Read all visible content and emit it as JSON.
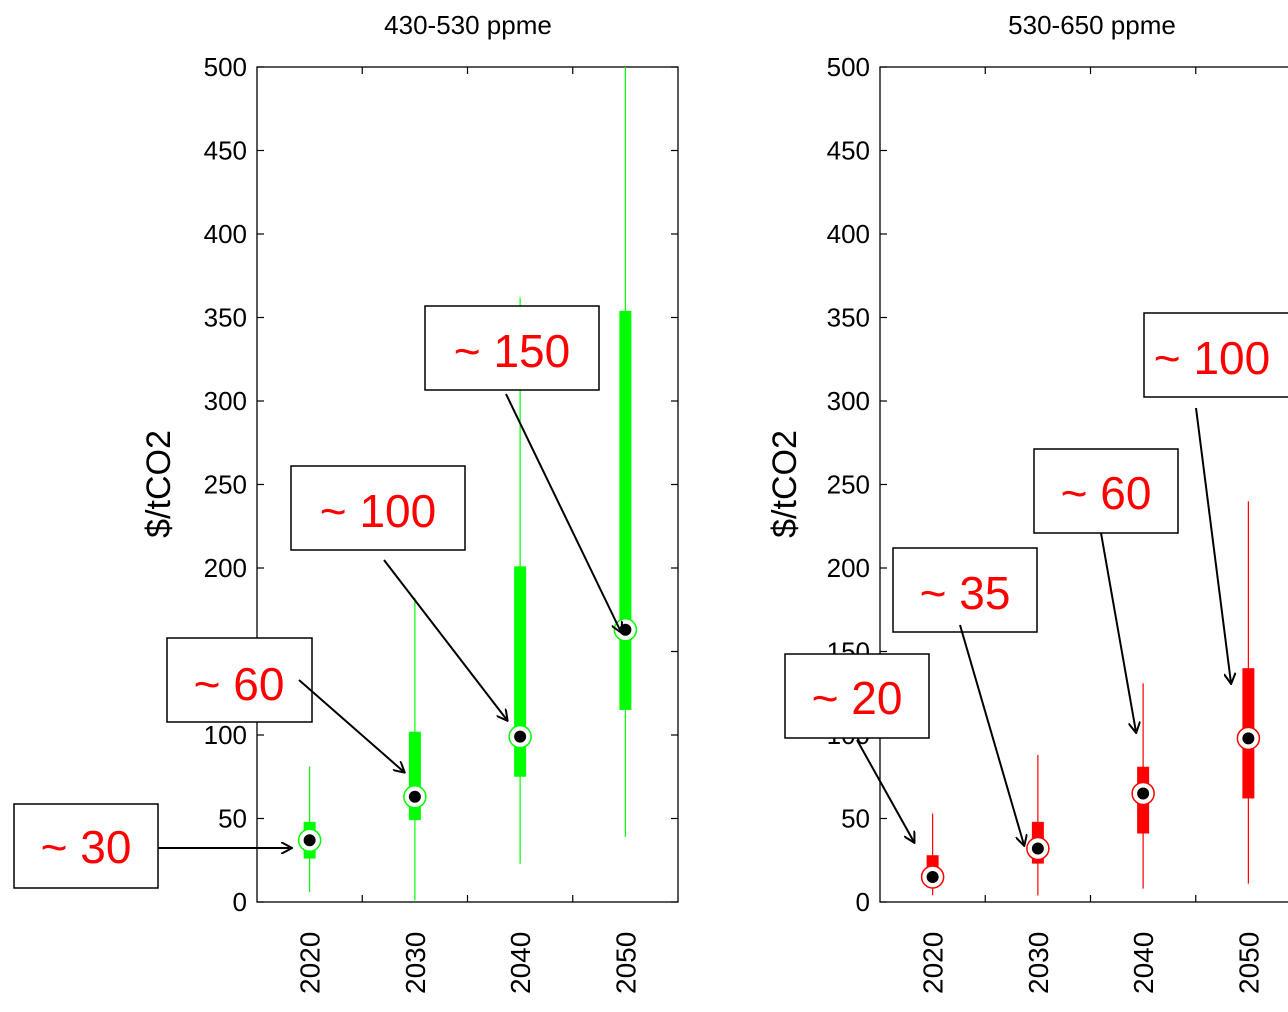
{
  "chart_data": [
    {
      "type": "box",
      "title": "430-530 ppme",
      "ylabel": "$/tCO2",
      "xlabel": "",
      "ylim": [
        0,
        500
      ],
      "yticks": [
        0,
        50,
        100,
        150,
        200,
        250,
        300,
        350,
        400,
        450,
        500
      ],
      "categories": [
        "2020",
        "2030",
        "2040",
        "2050"
      ],
      "color": "#00ff00",
      "boxes": [
        {
          "year": "2020",
          "whisker_low": 6,
          "q1": 26,
          "median": 37,
          "q3": 48,
          "whisker_high": 81
        },
        {
          "year": "2030",
          "whisker_low": 1,
          "q1": 49,
          "median": 63,
          "q3": 102,
          "whisker_high": 182
        },
        {
          "year": "2040",
          "whisker_low": 23,
          "q1": 75,
          "median": 99,
          "q3": 201,
          "whisker_high": 362
        },
        {
          "year": "2050",
          "whisker_low": 39,
          "q1": 115,
          "median": 163,
          "q3": 354,
          "whisker_high": 500
        }
      ],
      "annotations": [
        {
          "text": "~ 30",
          "target": "2020"
        },
        {
          "text": "~ 60",
          "target": "2030"
        },
        {
          "text": "~ 100",
          "target": "2040"
        },
        {
          "text": "~ 150",
          "target": "2050"
        }
      ]
    },
    {
      "type": "box",
      "title": "530-650 ppme",
      "ylabel": "$/tCO2",
      "xlabel": "",
      "ylim": [
        0,
        500
      ],
      "yticks": [
        0,
        50,
        100,
        150,
        200,
        250,
        300,
        350,
        400,
        450,
        500
      ],
      "categories": [
        "2020",
        "2030",
        "2040",
        "2050"
      ],
      "color": "#ff0000",
      "boxes": [
        {
          "year": "2020",
          "whisker_low": 4,
          "q1": 10,
          "median": 15,
          "q3": 28,
          "whisker_high": 53
        },
        {
          "year": "2030",
          "whisker_low": 4,
          "q1": 23,
          "median": 32,
          "q3": 48,
          "whisker_high": 88
        },
        {
          "year": "2040",
          "whisker_low": 8,
          "q1": 41,
          "median": 65,
          "q3": 81,
          "whisker_high": 131
        },
        {
          "year": "2050",
          "whisker_low": 11,
          "q1": 62,
          "median": 98,
          "q3": 140,
          "whisker_high": 240
        }
      ],
      "annotations": [
        {
          "text": "~ 20",
          "target": "2020"
        },
        {
          "text": "~ 35",
          "target": "2030"
        },
        {
          "text": "~ 60",
          "target": "2040"
        },
        {
          "text": "~ 100",
          "target": "2050"
        }
      ]
    }
  ]
}
